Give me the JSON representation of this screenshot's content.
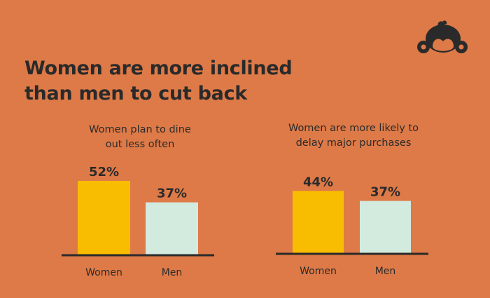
{
  "title": {
    "line1": "Women are more inclined",
    "line2": "than men to cut back"
  },
  "logo": {
    "icon": "surveymonkey-logo-icon"
  },
  "colors": {
    "background": "#DE7A47",
    "women": "#F8BC00",
    "men": "#D3EADF",
    "baseline": "#2a2a2a",
    "text": "#2a2a2a"
  },
  "chart_data": [
    {
      "type": "bar",
      "subtitle_line1": "Women plan to dine",
      "subtitle_line2": "out less often",
      "categories": [
        "Women",
        "Men"
      ],
      "values": [
        52,
        37
      ],
      "value_labels": [
        "52%",
        "37%"
      ],
      "ylim": [
        0,
        52
      ],
      "grid": false
    },
    {
      "type": "bar",
      "subtitle_line1": "Women are more likely to",
      "subtitle_line2": "delay major purchases",
      "categories": [
        "Women",
        "Men"
      ],
      "values": [
        44,
        37
      ],
      "value_labels": [
        "44%",
        "37%"
      ],
      "ylim": [
        0,
        52
      ],
      "grid": false
    }
  ]
}
